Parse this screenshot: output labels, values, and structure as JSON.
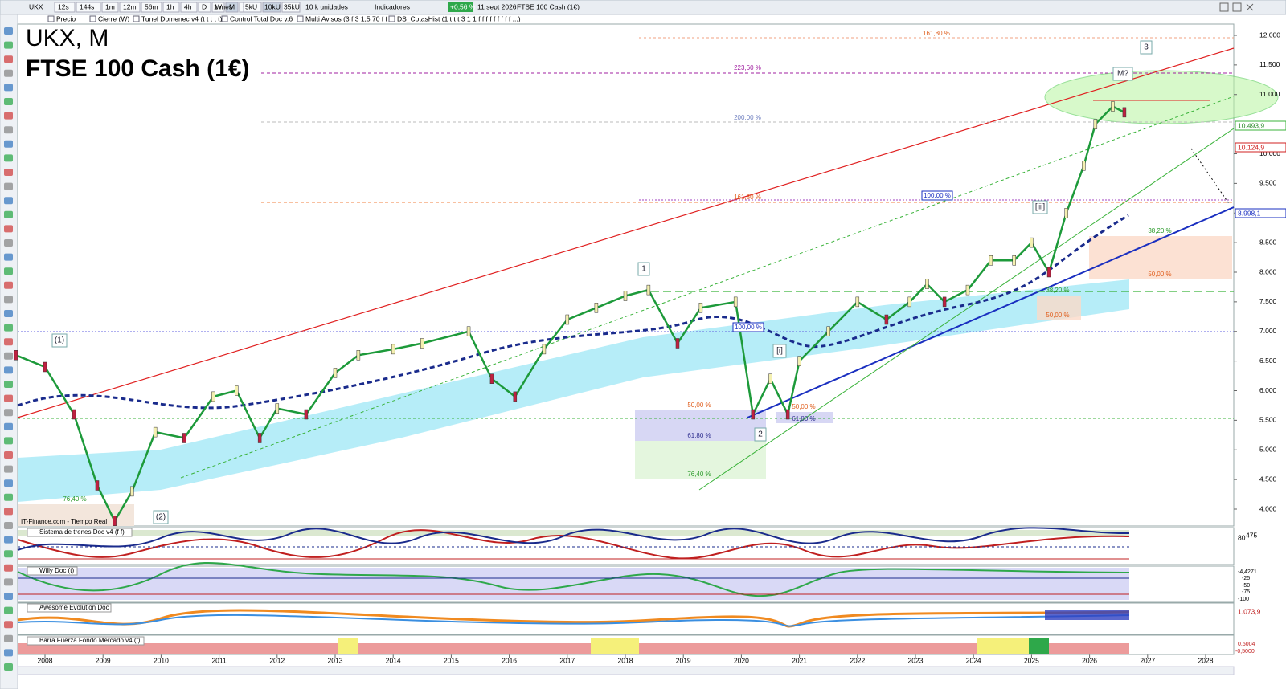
{
  "toolbar": {
    "symbol": "UKX",
    "periods": [
      "12s",
      "144s",
      "1m",
      "12m",
      "56m",
      "1h",
      "4h",
      "D",
      "W",
      "M",
      "Q"
    ],
    "range": "1 mes",
    "units": [
      "5kU",
      "10kU",
      "35kU"
    ],
    "unit_select": "10 k unidades",
    "indicators": "Indicadores",
    "change": "+0,56 %",
    "date": "11 sept 2026",
    "instrument": "FTSE 100 Cash (1€)"
  },
  "legend": [
    "Precio",
    "Cierre (W)",
    "Tunel Domenec v4 (t t t t t)",
    "Control Total Doc v.6",
    "Multi Avisos (3 f 3 1,5 70 f f f)",
    "DS_CotasHist (1 t t t 3 1 1 f f f f f f f f f ...)"
  ],
  "title": "UKX, M",
  "subtitle": "FTSE 100 Cash (1€)",
  "source": "IT-Finance.com - Tiempo Real",
  "chart": {
    "yticks": [
      {
        "value": 12000,
        "label": "12.000"
      },
      {
        "value": 11500,
        "label": "11.500"
      },
      {
        "value": 11000,
        "label": "11.000"
      },
      {
        "value": 10500,
        "label": "10.500"
      },
      {
        "value": 10000,
        "label": "10.000"
      },
      {
        "value": 9500,
        "label": "9.500"
      },
      {
        "value": 9000,
        "label": "9.000"
      },
      {
        "value": 8500,
        "label": "8.500"
      },
      {
        "value": 8000,
        "label": "8.000"
      },
      {
        "value": 7500,
        "label": "7.500"
      },
      {
        "value": 7000,
        "label": "7.000"
      },
      {
        "value": 6500,
        "label": "6.500"
      },
      {
        "value": 6000,
        "label": "6.000"
      },
      {
        "value": 5500,
        "label": "5.500"
      },
      {
        "value": 5000,
        "label": "5.000"
      },
      {
        "value": 4500,
        "label": "4.500"
      },
      {
        "value": 4000,
        "label": "4.000"
      }
    ],
    "ylim": [
      3920,
      12200
    ],
    "xticks": [
      2008,
      2009,
      2010,
      2011,
      2012,
      2013,
      2014,
      2015,
      2016,
      2017,
      2018,
      2019,
      2020,
      2021,
      2022,
      2023,
      2024,
      2025,
      2026,
      2027,
      2028
    ],
    "xlim": [
      2007.53,
      2028.5
    ],
    "x": [
      2007.5,
      2008.0,
      2008.5,
      2008.9,
      2009.2,
      2009.5,
      2009.9,
      2010.4,
      2010.9,
      2011.3,
      2011.7,
      2012.0,
      2012.5,
      2013.0,
      2013.4,
      2014.0,
      2014.5,
      2015.3,
      2015.7,
      2016.1,
      2016.6,
      2017.0,
      2017.5,
      2018.0,
      2018.4,
      2018.9,
      2019.3,
      2019.9,
      2020.2,
      2020.5,
      2020.8,
      2021.0,
      2021.5,
      2022.0,
      2022.5,
      2022.9,
      2023.2,
      2023.5,
      2023.9,
      2024.3,
      2024.7,
      2025.0,
      2025.3,
      2025.6,
      2025.9,
      2026.1,
      2026.4,
      2026.6
    ],
    "close": [
      6600,
      6400,
      5600,
      4400,
      3800,
      4300,
      5300,
      5200,
      5900,
      6000,
      5200,
      5700,
      5600,
      6300,
      6600,
      6700,
      6800,
      7000,
      6200,
      5900,
      6700,
      7200,
      7400,
      7600,
      7700,
      6800,
      7400,
      7500,
      5600,
      6200,
      5600,
      6500,
      7000,
      7500,
      7200,
      7500,
      7800,
      7500,
      7700,
      8200,
      8200,
      8500,
      8000,
      9000,
      9800,
      10500,
      10800,
      10700
    ],
    "price_markers": [
      "10.493,9",
      "10.124,9",
      "8.998,1"
    ],
    "fib_labels": [
      "161,80 %",
      "223,60 %",
      "200,00 %",
      "161,80 %",
      "100,00 %",
      "100,00 %",
      "50,00 %",
      "61,80 %",
      "76,40 %",
      "76,40 %",
      "38,20 %",
      "50,00 %",
      "38,20 %",
      "50,00 %",
      "50,00 %",
      "61,80 %"
    ],
    "wave_labels": [
      "(1)",
      "(2)",
      "1",
      "2",
      "3",
      "[i]",
      "[iii]",
      "M?"
    ]
  },
  "panels": [
    {
      "name": "Sistema de trenes Doc v4 (f f)",
      "axis": [
        "80",
        "475"
      ]
    },
    {
      "name": "Willy Doc (t)",
      "axis": [
        "-4,4271",
        "-25",
        "-50",
        "-75",
        "-100"
      ]
    },
    {
      "name": "Awesome Evolution Doc",
      "axis": [
        "1.073,9"
      ]
    },
    {
      "name": "Barra Fuerza Fondo Mercado v4 (f)",
      "axis": [
        "0,5004",
        "-0,5000"
      ]
    }
  ]
}
